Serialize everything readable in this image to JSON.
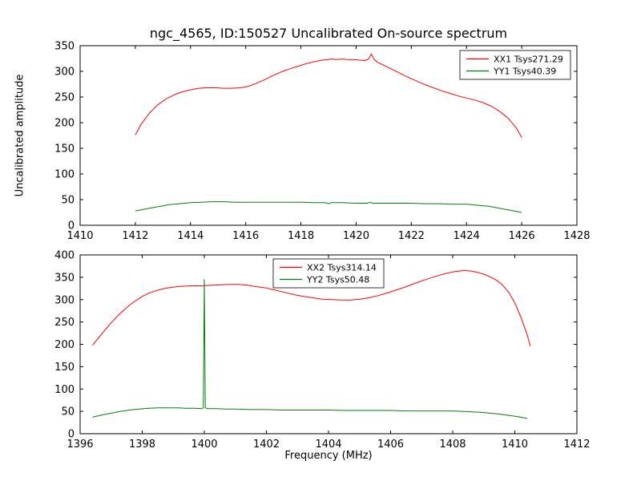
{
  "figure": {
    "title": "ngc_4565, ID:150527 Uncalibrated On-source spectrum",
    "background": "#ffffff",
    "frame_color": "#000000"
  },
  "chart_data": [
    {
      "name": "top-spectrum",
      "type": "line",
      "title": "ngc_4565, ID:150527 Uncalibrated On-source spectrum",
      "xlabel": "",
      "ylabel": "Uncalibrated amplitude",
      "xlim": [
        1410,
        1428
      ],
      "ylim": [
        0,
        350
      ],
      "xticks": [
        1410,
        1412,
        1414,
        1416,
        1418,
        1420,
        1422,
        1424,
        1426,
        1428
      ],
      "yticks": [
        0,
        50,
        100,
        150,
        200,
        250,
        300,
        350
      ],
      "grid": false,
      "legend_position": "upper right",
      "series": [
        {
          "name": "XX1 Tsys271.29",
          "color": "#ff0000",
          "points": [
            [
              1412.0,
              176
            ],
            [
              1412.2,
              196
            ],
            [
              1412.5,
              218
            ],
            [
              1412.8,
              234
            ],
            [
              1413.1,
              246
            ],
            [
              1413.4,
              254
            ],
            [
              1413.7,
              260
            ],
            [
              1414.0,
              264
            ],
            [
              1414.3,
              267
            ],
            [
              1414.6,
              268
            ],
            [
              1414.9,
              268
            ],
            [
              1415.2,
              267
            ],
            [
              1415.5,
              267
            ],
            [
              1415.8,
              268
            ],
            [
              1416.1,
              271
            ],
            [
              1416.4,
              277
            ],
            [
              1416.7,
              284
            ],
            [
              1417.0,
              292
            ],
            [
              1417.3,
              299
            ],
            [
              1417.6,
              305
            ],
            [
              1417.9,
              310
            ],
            [
              1418.2,
              315
            ],
            [
              1418.5,
              319
            ],
            [
              1418.8,
              322
            ],
            [
              1419.0,
              323
            ],
            [
              1419.1,
              324
            ],
            [
              1419.3,
              323
            ],
            [
              1419.5,
              324
            ],
            [
              1419.7,
              323
            ],
            [
              1419.9,
              323
            ],
            [
              1420.1,
              322
            ],
            [
              1420.3,
              321
            ],
            [
              1420.45,
              324
            ],
            [
              1420.55,
              334
            ],
            [
              1420.65,
              323
            ],
            [
              1420.8,
              317
            ],
            [
              1421.0,
              312
            ],
            [
              1421.3,
              304
            ],
            [
              1421.6,
              296
            ],
            [
              1421.9,
              288
            ],
            [
              1422.2,
              281
            ],
            [
              1422.5,
              274
            ],
            [
              1422.8,
              268
            ],
            [
              1423.1,
              262
            ],
            [
              1423.4,
              257
            ],
            [
              1423.7,
              252
            ],
            [
              1424.0,
              248
            ],
            [
              1424.3,
              244
            ],
            [
              1424.6,
              239
            ],
            [
              1424.9,
              232
            ],
            [
              1425.2,
              222
            ],
            [
              1425.5,
              209
            ],
            [
              1425.8,
              190
            ],
            [
              1426.0,
              171
            ]
          ]
        },
        {
          "name": "YY1 Tsys40.39",
          "color": "#008000",
          "points": [
            [
              1412.0,
              28
            ],
            [
              1412.4,
              32
            ],
            [
              1412.8,
              36
            ],
            [
              1413.2,
              40
            ],
            [
              1413.6,
              42
            ],
            [
              1414.0,
              44
            ],
            [
              1414.4,
              45
            ],
            [
              1414.8,
              46
            ],
            [
              1415.2,
              46
            ],
            [
              1415.6,
              45
            ],
            [
              1416.0,
              45
            ],
            [
              1416.5,
              45
            ],
            [
              1417.0,
              45
            ],
            [
              1417.5,
              45
            ],
            [
              1418.0,
              45
            ],
            [
              1418.5,
              44
            ],
            [
              1418.9,
              44
            ],
            [
              1419.0,
              42
            ],
            [
              1419.1,
              44
            ],
            [
              1419.5,
              44
            ],
            [
              1420.0,
              43
            ],
            [
              1420.4,
              43
            ],
            [
              1420.5,
              45
            ],
            [
              1420.6,
              43
            ],
            [
              1421.0,
              43
            ],
            [
              1421.5,
              43
            ],
            [
              1422.0,
              43
            ],
            [
              1422.5,
              42
            ],
            [
              1423.0,
              42
            ],
            [
              1423.5,
              41
            ],
            [
              1424.0,
              41
            ],
            [
              1424.4,
              39
            ],
            [
              1424.8,
              37
            ],
            [
              1425.2,
              33
            ],
            [
              1425.6,
              29
            ],
            [
              1426.0,
              25
            ]
          ]
        }
      ]
    },
    {
      "name": "bottom-spectrum",
      "type": "line",
      "title": "",
      "xlabel": "Frequency (MHz)",
      "ylabel": "",
      "xlim": [
        1396,
        1412
      ],
      "ylim": [
        0,
        400
      ],
      "xticks": [
        1396,
        1398,
        1400,
        1402,
        1404,
        1406,
        1408,
        1410,
        1412
      ],
      "yticks": [
        0,
        50,
        100,
        150,
        200,
        250,
        300,
        350,
        400
      ],
      "grid": false,
      "legend_position": "upper center",
      "series": [
        {
          "name": "XX2 Tsys314.14",
          "color": "#ff0000",
          "points": [
            [
              1396.4,
              198
            ],
            [
              1396.6,
              215
            ],
            [
              1396.8,
              232
            ],
            [
              1397.0,
              248
            ],
            [
              1397.2,
              263
            ],
            [
              1397.4,
              276
            ],
            [
              1397.6,
              288
            ],
            [
              1397.8,
              298
            ],
            [
              1398.0,
              307
            ],
            [
              1398.2,
              314
            ],
            [
              1398.4,
              319
            ],
            [
              1398.6,
              323
            ],
            [
              1398.8,
              326
            ],
            [
              1399.0,
              328
            ],
            [
              1399.3,
              330
            ],
            [
              1399.6,
              331
            ],
            [
              1399.9,
              331
            ],
            [
              1400.2,
              332
            ],
            [
              1400.5,
              333
            ],
            [
              1400.8,
              334
            ],
            [
              1401.1,
              334
            ],
            [
              1401.4,
              332
            ],
            [
              1401.7,
              329
            ],
            [
              1402.0,
              326
            ],
            [
              1402.3,
              321
            ],
            [
              1402.6,
              316
            ],
            [
              1402.9,
              311
            ],
            [
              1403.2,
              307
            ],
            [
              1403.5,
              304
            ],
            [
              1403.8,
              301
            ],
            [
              1404.1,
              300
            ],
            [
              1404.4,
              299
            ],
            [
              1404.7,
              299
            ],
            [
              1405.0,
              301
            ],
            [
              1405.3,
              304
            ],
            [
              1405.6,
              309
            ],
            [
              1405.9,
              315
            ],
            [
              1406.2,
              322
            ],
            [
              1406.5,
              329
            ],
            [
              1406.8,
              337
            ],
            [
              1407.1,
              344
            ],
            [
              1407.4,
              351
            ],
            [
              1407.7,
              357
            ],
            [
              1408.0,
              362
            ],
            [
              1408.2,
              364
            ],
            [
              1408.4,
              365
            ],
            [
              1408.6,
              364
            ],
            [
              1408.8,
              361
            ],
            [
              1409.0,
              357
            ],
            [
              1409.2,
              351
            ],
            [
              1409.4,
              344
            ],
            [
              1409.6,
              333
            ],
            [
              1409.8,
              317
            ],
            [
              1410.0,
              293
            ],
            [
              1410.2,
              260
            ],
            [
              1410.4,
              221
            ],
            [
              1410.5,
              196
            ]
          ]
        },
        {
          "name": "YY2 Tsys50.48",
          "color": "#008000",
          "points": [
            [
              1396.4,
              37
            ],
            [
              1396.7,
              42
            ],
            [
              1397.0,
              46
            ],
            [
              1397.3,
              50
            ],
            [
              1397.6,
              53
            ],
            [
              1397.9,
              55
            ],
            [
              1398.2,
              57
            ],
            [
              1398.5,
              58
            ],
            [
              1398.8,
              58
            ],
            [
              1399.1,
              58
            ],
            [
              1399.4,
              57
            ],
            [
              1399.7,
              57
            ],
            [
              1399.9,
              56
            ],
            [
              1399.97,
              58
            ],
            [
              1400.0,
              345
            ],
            [
              1400.03,
              58
            ],
            [
              1400.1,
              56
            ],
            [
              1400.4,
              56
            ],
            [
              1400.7,
              55
            ],
            [
              1401.0,
              55
            ],
            [
              1401.5,
              54
            ],
            [
              1402.0,
              54
            ],
            [
              1402.5,
              53
            ],
            [
              1403.0,
              53
            ],
            [
              1403.5,
              53
            ],
            [
              1404.0,
              53
            ],
            [
              1404.5,
              52
            ],
            [
              1405.0,
              52
            ],
            [
              1405.5,
              52
            ],
            [
              1406.0,
              52
            ],
            [
              1406.5,
              51
            ],
            [
              1407.0,
              51
            ],
            [
              1407.5,
              51
            ],
            [
              1408.0,
              51
            ],
            [
              1408.3,
              50
            ],
            [
              1408.6,
              49
            ],
            [
              1408.9,
              48
            ],
            [
              1409.2,
              46
            ],
            [
              1409.5,
              44
            ],
            [
              1409.8,
              41
            ],
            [
              1410.1,
              38
            ],
            [
              1410.4,
              34
            ]
          ]
        }
      ]
    }
  ]
}
